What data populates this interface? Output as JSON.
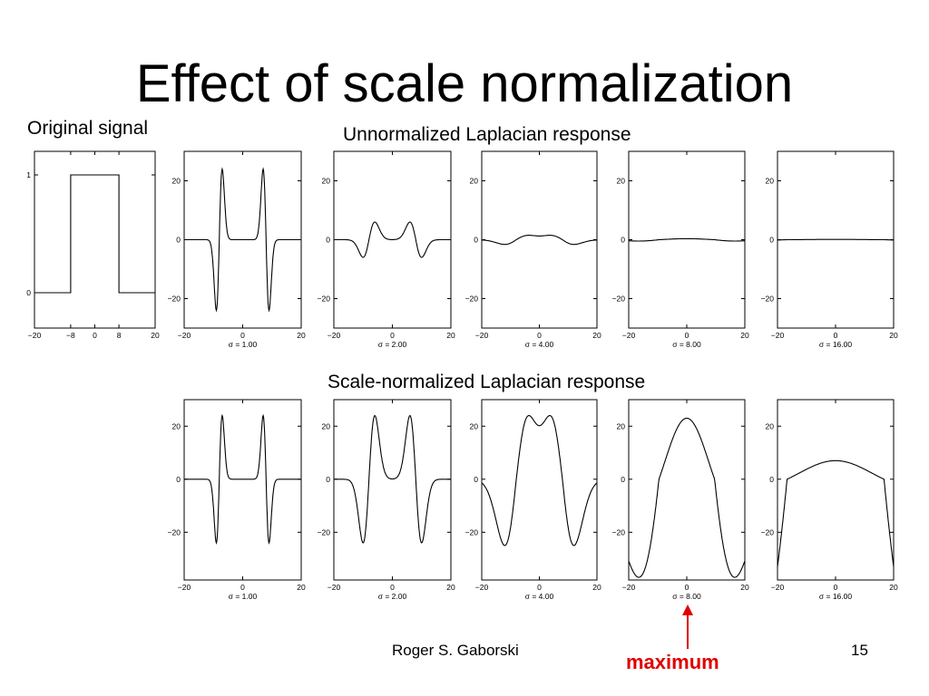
{
  "slide": {
    "title": "Effect of scale normalization",
    "label_original": "Original signal",
    "label_unnormalized": "Unnormalized Laplacian response",
    "label_normalized": "Scale-normalized Laplacian response",
    "author": "Roger S. Gaborski",
    "page_number": "15",
    "annotation": "maximum",
    "annotation_color": "#e00000"
  },
  "chart_data": [
    {
      "type": "line",
      "name": "original-signal",
      "xlim": [
        -20,
        20
      ],
      "ylim": [
        -0.3,
        1.2
      ],
      "xticks": [
        -20,
        -8,
        0,
        8,
        20
      ],
      "yticks": [
        0,
        1
      ],
      "xlabel": "",
      "series": [
        {
          "x": [
            -20,
            -8,
            -8,
            8,
            8,
            20
          ],
          "y": [
            0,
            0,
            1,
            1,
            0,
            0
          ]
        }
      ]
    },
    {
      "type": "line",
      "name": "unnormalized",
      "sigma": 1,
      "xlim": [
        -20,
        20
      ],
      "ylim": [
        -30,
        30
      ],
      "xticks": [
        -20,
        0,
        20
      ],
      "yticks": [
        20,
        0,
        -20
      ],
      "xlabel": "σ = 1.00",
      "peak": 24,
      "trough": -24
    },
    {
      "type": "line",
      "name": "unnormalized",
      "sigma": 2,
      "xlim": [
        -20,
        20
      ],
      "ylim": [
        -30,
        30
      ],
      "xticks": [
        -20,
        0,
        20
      ],
      "yticks": [
        20,
        0,
        -20
      ],
      "xlabel": "σ = 2.00",
      "peak": 6,
      "trough": -6
    },
    {
      "type": "line",
      "name": "unnormalized",
      "sigma": 4,
      "xlim": [
        -20,
        20
      ],
      "ylim": [
        -30,
        30
      ],
      "xticks": [
        -20,
        0,
        20
      ],
      "yticks": [
        20,
        0,
        -20
      ],
      "xlabel": "σ = 4.00",
      "peak": 1.5,
      "trough": -1.6
    },
    {
      "type": "line",
      "name": "unnormalized",
      "sigma": 8,
      "xlim": [
        -20,
        20
      ],
      "ylim": [
        -30,
        30
      ],
      "xticks": [
        -20,
        0,
        20
      ],
      "yticks": [
        20,
        0,
        -20
      ],
      "xlabel": "σ = 8.00",
      "peak": 0.35,
      "trough": -0.45
    },
    {
      "type": "line",
      "name": "unnormalized",
      "sigma": 16,
      "xlim": [
        -20,
        20
      ],
      "ylim": [
        -30,
        30
      ],
      "xticks": [
        -20,
        0,
        20
      ],
      "yticks": [
        20,
        0,
        -20
      ],
      "xlabel": "σ = 16.00",
      "peak": 0.1,
      "trough": -0.1
    },
    {
      "type": "line",
      "name": "normalized",
      "sigma": 1,
      "xlim": [
        -20,
        20
      ],
      "ylim": [
        -38,
        30
      ],
      "xticks": [
        -20,
        0,
        20
      ],
      "yticks": [
        20,
        0,
        -20
      ],
      "xlabel": "σ = 1.00",
      "peak": 24,
      "trough": -24
    },
    {
      "type": "line",
      "name": "normalized",
      "sigma": 2,
      "xlim": [
        -20,
        20
      ],
      "ylim": [
        -38,
        30
      ],
      "xticks": [
        -20,
        0,
        20
      ],
      "yticks": [
        20,
        0,
        -20
      ],
      "xlabel": "σ = 2.00",
      "peak": 24,
      "trough": -24
    },
    {
      "type": "line",
      "name": "normalized",
      "sigma": 4,
      "xlim": [
        -20,
        20
      ],
      "ylim": [
        -38,
        30
      ],
      "xticks": [
        -20,
        0,
        20
      ],
      "yticks": [
        20,
        0,
        -20
      ],
      "xlabel": "σ = 4.00",
      "peak": 24,
      "trough": -25
    },
    {
      "type": "line",
      "name": "normalized",
      "sigma": 8,
      "xlim": [
        -20,
        20
      ],
      "ylim": [
        -38,
        30
      ],
      "xticks": [
        -20,
        0,
        20
      ],
      "yticks": [
        20,
        0,
        -20
      ],
      "xlabel": "σ = 8.00",
      "peak": 23,
      "trough": -37
    },
    {
      "type": "line",
      "name": "normalized",
      "sigma": 16,
      "xlim": [
        -20,
        20
      ],
      "ylim": [
        -38,
        30
      ],
      "xticks": [
        -20,
        0,
        20
      ],
      "yticks": [
        20,
        0,
        -20
      ],
      "xlabel": "σ = 16.00",
      "peak": 7,
      "trough": -33
    }
  ]
}
